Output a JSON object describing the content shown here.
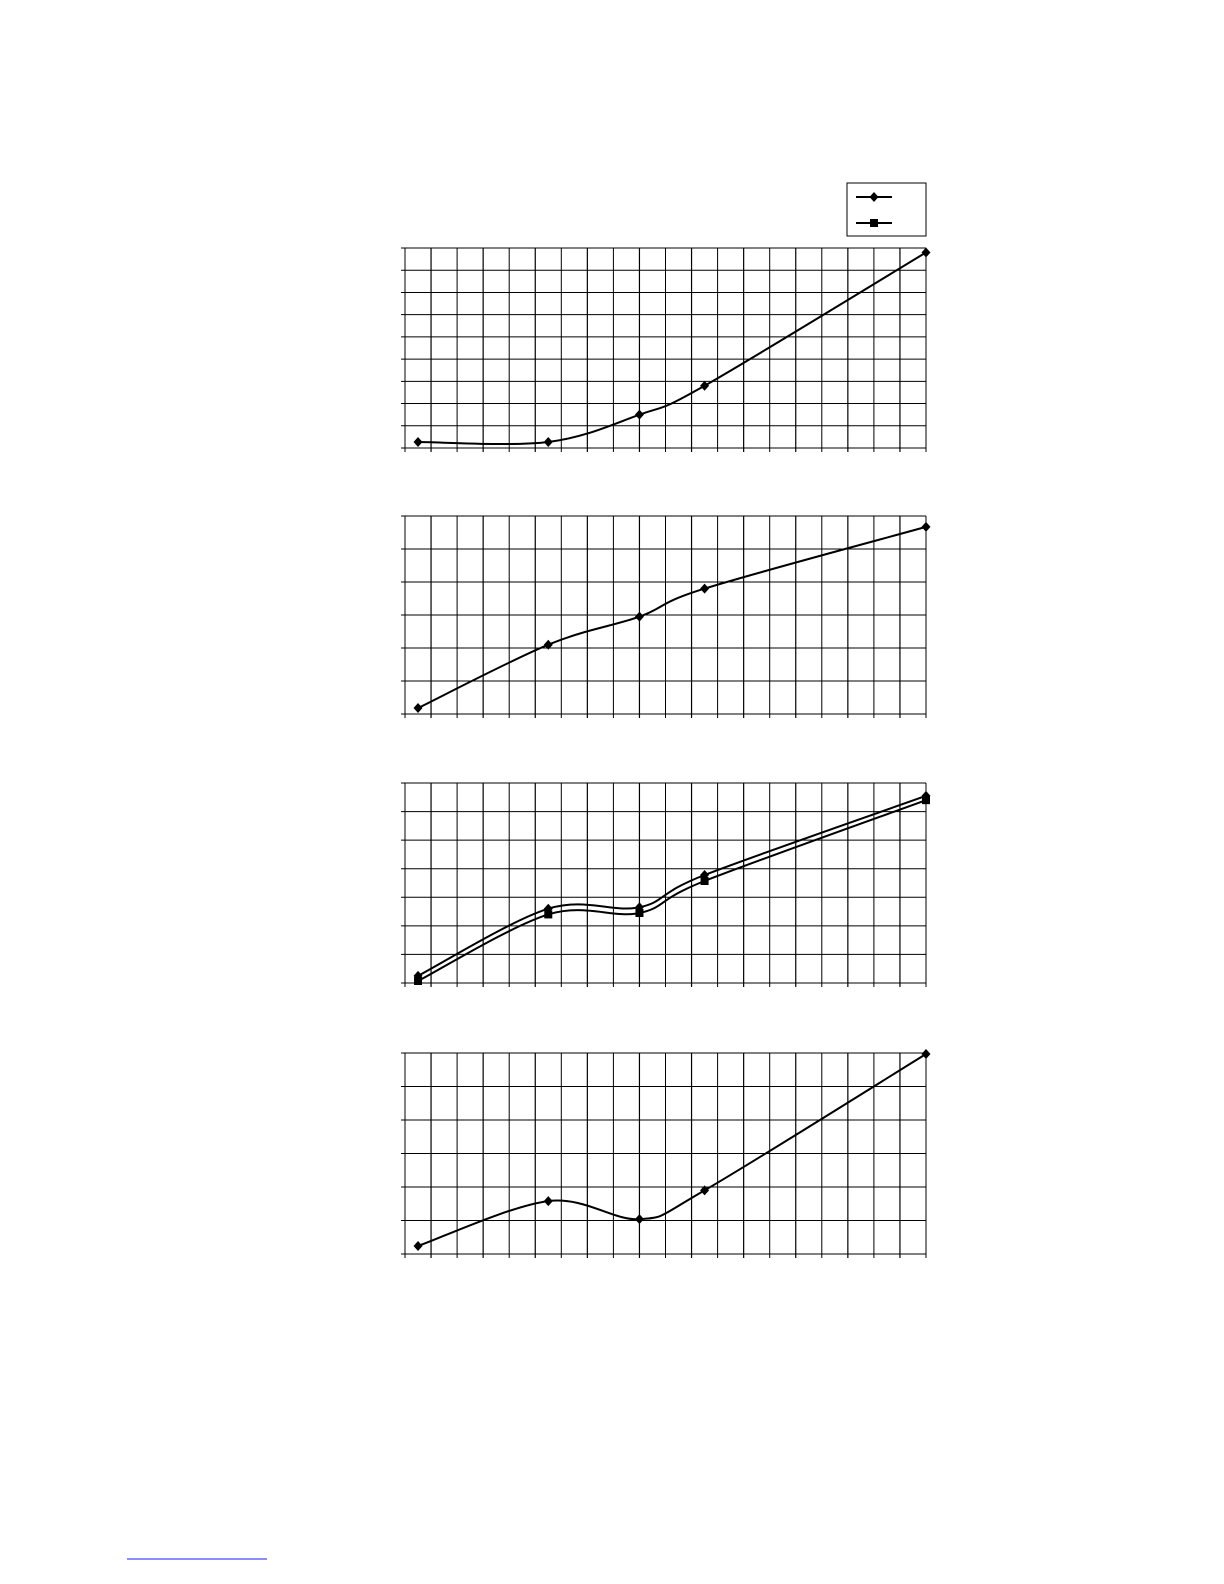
{
  "chart_data": [
    {
      "type": "line",
      "smoothed": true,
      "grid": true,
      "xlim": [
        0,
        20
      ],
      "ylim": [
        0,
        9
      ],
      "x_grid_divisions": 20,
      "y_grid_divisions": 9,
      "series": [
        {
          "marker": "diamond",
          "x": [
            0.5,
            5.5,
            9.0,
            11.5,
            20
          ],
          "y": [
            0.27,
            0.27,
            1.5,
            2.8,
            8.8
          ]
        }
      ]
    },
    {
      "type": "line",
      "smoothed": true,
      "grid": true,
      "xlim": [
        0,
        20
      ],
      "ylim": [
        0,
        6
      ],
      "x_grid_divisions": 20,
      "y_grid_divisions": 6,
      "series": [
        {
          "marker": "diamond",
          "x": [
            0.5,
            5.5,
            9.0,
            11.5,
            20
          ],
          "y": [
            0.18,
            2.1,
            2.95,
            3.8,
            5.67
          ]
        }
      ]
    },
    {
      "type": "line",
      "smoothed": true,
      "grid": true,
      "xlim": [
        0,
        20
      ],
      "ylim": [
        0,
        7
      ],
      "x_grid_divisions": 20,
      "y_grid_divisions": 7,
      "series": [
        {
          "marker": "diamond",
          "x": [
            0.5,
            5.5,
            9.0,
            11.5,
            20
          ],
          "y": [
            0.25,
            2.6,
            2.65,
            3.78,
            6.55
          ]
        },
        {
          "marker": "square",
          "x": [
            0.5,
            5.5,
            9.0,
            11.5,
            20
          ],
          "y": [
            0.07,
            2.4,
            2.45,
            3.57,
            6.4
          ]
        }
      ]
    },
    {
      "type": "line",
      "smoothed": true,
      "grid": true,
      "xlim": [
        0,
        20
      ],
      "ylim": [
        0,
        6
      ],
      "x_grid_divisions": 20,
      "y_grid_divisions": 6,
      "series": [
        {
          "marker": "diamond",
          "x": [
            0.5,
            5.5,
            9.0,
            11.5,
            20
          ],
          "y": [
            0.24,
            1.58,
            1.04,
            1.9,
            5.97
          ]
        }
      ]
    }
  ],
  "legend": {
    "placement": "top-right",
    "entries": [
      {
        "marker": "diamond"
      },
      {
        "marker": "square"
      }
    ]
  },
  "colors": {
    "line": "#000000",
    "grid": "#000000",
    "background": "#ffffff",
    "footnote_rule": "#1a1aff"
  }
}
